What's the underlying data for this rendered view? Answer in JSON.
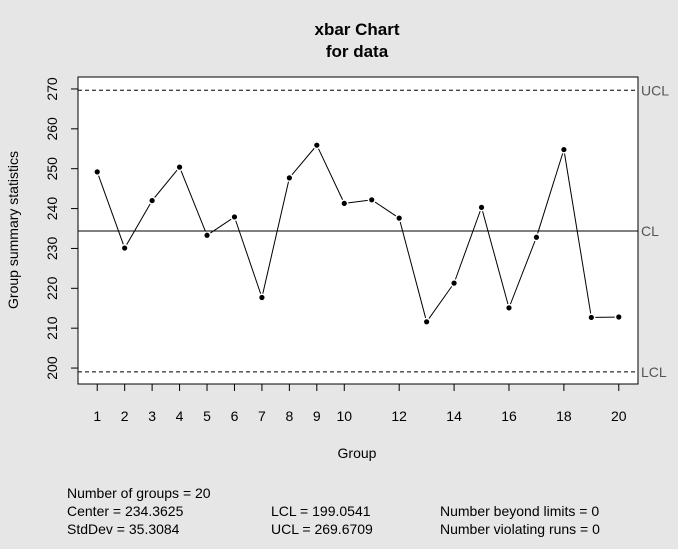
{
  "chart_data": {
    "type": "line",
    "title_line1": "xbar Chart",
    "title_line2": "for data",
    "xlabel": "Group",
    "ylabel": "Group summary statistics",
    "x": [
      1,
      2,
      3,
      4,
      5,
      6,
      7,
      8,
      9,
      10,
      11,
      12,
      13,
      14,
      15,
      16,
      17,
      18,
      19,
      20
    ],
    "values": [
      249.2,
      230.1,
      242.0,
      250.4,
      233.3,
      237.9,
      217.7,
      247.7,
      255.9,
      241.3,
      242.2,
      237.6,
      211.6,
      221.3,
      240.3,
      215.1,
      232.8,
      254.8,
      212.7,
      212.8
    ],
    "x_tick_labels": [
      "1",
      "2",
      "3",
      "4",
      "5",
      "6",
      "7",
      "8",
      "9",
      "10",
      "12",
      "14",
      "16",
      "18",
      "20"
    ],
    "x_tick_values": [
      1,
      2,
      3,
      4,
      5,
      6,
      7,
      8,
      9,
      10,
      12,
      14,
      16,
      18,
      20
    ],
    "y_ticks": [
      200,
      210,
      220,
      230,
      240,
      250,
      260,
      270
    ],
    "xlim": [
      0.3,
      20.7
    ],
    "ylim": [
      196,
      273
    ],
    "center": 234.3625,
    "lcl": 199.0541,
    "ucl": 269.6709,
    "limit_labels": {
      "ucl": "UCL",
      "cl": "CL",
      "lcl": "LCL"
    },
    "grid": false
  },
  "stats": {
    "groups": "Number of groups = 20",
    "center": "Center = 234.3625",
    "stddev": "StdDev = 35.3084",
    "lcl": "LCL = 199.0541",
    "ucl": "UCL = 269.6709",
    "beyond": "Number beyond limits = 0",
    "violating": "Number violating runs = 0"
  }
}
